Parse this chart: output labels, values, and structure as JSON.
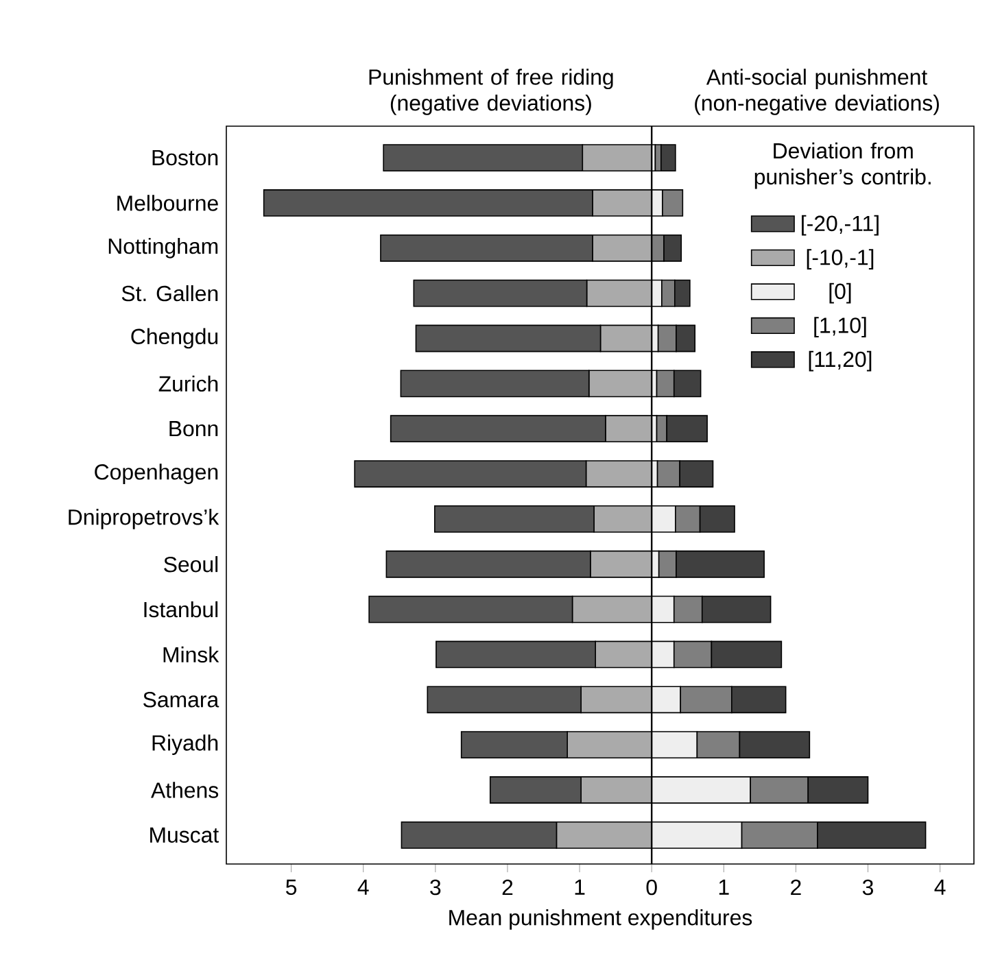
{
  "chart_data": {
    "type": "bar",
    "orientation": "horizontal",
    "stacked": true,
    "annotations": [
      "Punishment of free riding (negative deviations)",
      "Anti-social punishment (non-negative deviations)"
    ],
    "xlabel": "Mean punishment expenditures",
    "legend_title": "Deviation from punisher’s contrib.",
    "legend": "top right",
    "categories": [
      "Boston",
      "Melbourne",
      "Nottingham",
      "St. Gallen",
      "Chengdu",
      "Zurich",
      "Bonn",
      "Copenhagen",
      "Dnipropetrovs’k",
      "Seoul",
      "Istanbul",
      "Minsk",
      "Samara",
      "Riyadh",
      "Athens",
      "Muscat"
    ],
    "series": [
      {
        "name": "[-10,-1]",
        "color": "#aaaaaa",
        "values": [
          -0.96,
          -0.82,
          -0.82,
          -0.9,
          -0.71,
          -0.87,
          -0.64,
          -0.91,
          -0.8,
          -0.85,
          -1.1,
          -0.78,
          -0.98,
          -1.17,
          -0.98,
          -1.32
        ]
      },
      {
        "name": "[-20,-11]",
        "color": "#555555",
        "values": [
          -2.76,
          -4.56,
          -2.94,
          -2.4,
          -2.56,
          -2.61,
          -2.98,
          -3.21,
          -2.21,
          -2.83,
          -2.82,
          -2.21,
          -2.13,
          -1.47,
          -1.26,
          -2.15
        ]
      },
      {
        "name": "[0]",
        "color": "#eeeeee",
        "values": [
          0.05,
          0.15,
          null,
          0.14,
          0.09,
          0.07,
          0.07,
          0.08,
          0.33,
          0.1,
          0.31,
          0.31,
          0.4,
          0.63,
          1.37,
          1.25
        ]
      },
      {
        "name": "[1,10]",
        "color": "#7f7f7f",
        "values": [
          0.08,
          0.28,
          0.17,
          0.18,
          0.25,
          0.24,
          0.14,
          0.31,
          0.34,
          0.24,
          0.39,
          0.52,
          0.71,
          0.59,
          0.8,
          1.05
        ]
      },
      {
        "name": "[11,20]",
        "color": "#404040",
        "values": [
          0.2,
          0,
          0.24,
          0.21,
          0.26,
          0.37,
          0.56,
          0.46,
          0.48,
          1.22,
          0.95,
          0.97,
          0.75,
          0.97,
          0.83,
          1.5
        ]
      }
    ],
    "xlim": [
      -5.9,
      4.47
    ],
    "xticks": [
      {
        "value": -5,
        "label": "5"
      },
      {
        "value": -4,
        "label": "4"
      },
      {
        "value": -3,
        "label": "3"
      },
      {
        "value": -2,
        "label": "2"
      },
      {
        "value": -1,
        "label": "1"
      },
      0,
      1,
      2,
      3,
      4
    ],
    "ref_lines": [
      {
        "axis": "x",
        "value": 0
      }
    ]
  }
}
